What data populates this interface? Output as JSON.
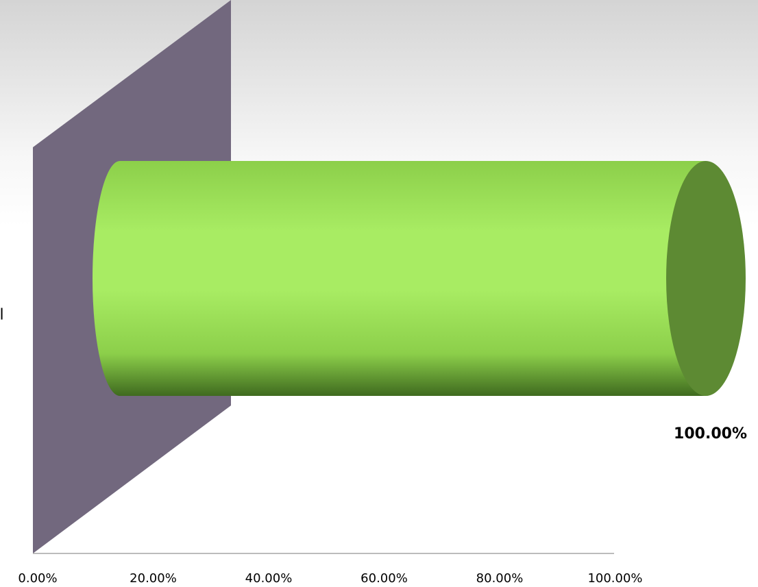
{
  "chart_data": {
    "type": "bar",
    "orientation": "horizontal",
    "style": "3d-cylinder",
    "categories": [
      "al"
    ],
    "values": [
      1.0
    ],
    "data_labels": [
      "100.00%"
    ],
    "x_ticks": [
      "0.00%",
      "20.00%",
      "40.00%",
      "60.00%",
      "80.00%",
      "100.00%"
    ],
    "xlim": [
      0,
      1
    ],
    "grid": false,
    "legend": "none"
  },
  "colors": {
    "bar_light": "#a8ec63",
    "bar_mid": "#8ccf4a",
    "bar_dark": "#3f6a1f",
    "bar_cap": "#5d8a33",
    "back_wall": "#72687e",
    "axis_line": "#a6a6a6"
  }
}
